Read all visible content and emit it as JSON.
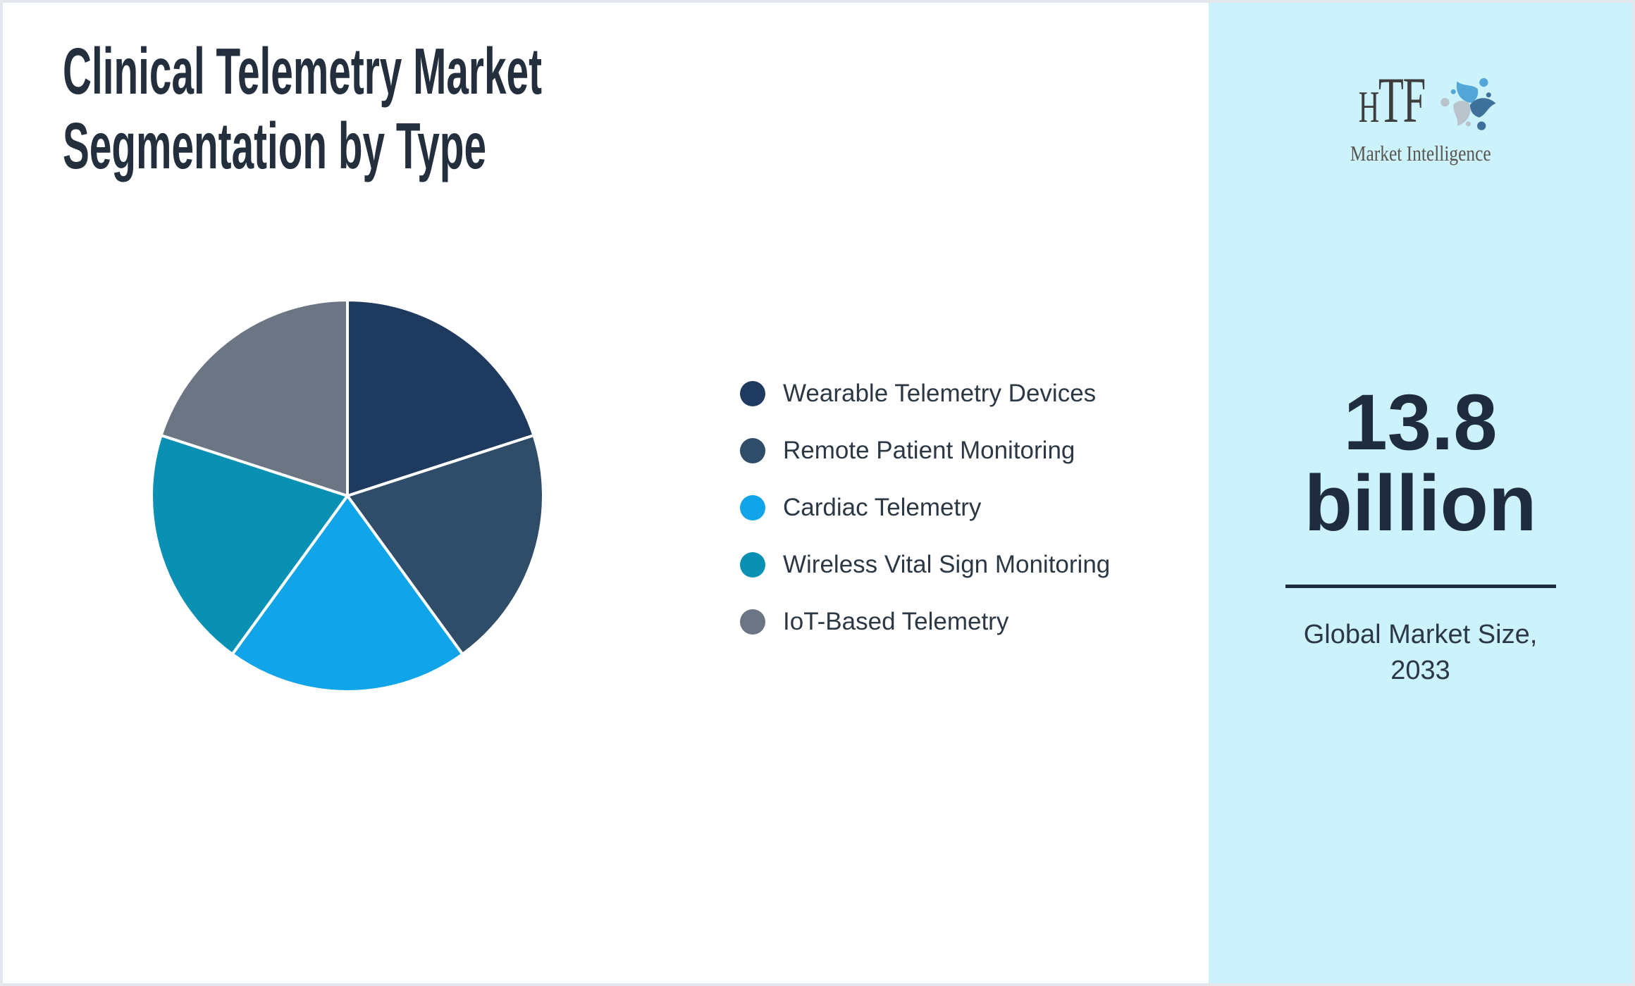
{
  "title": {
    "line1": "Clinical Telemetry Market",
    "line2": "Segmentation by Type"
  },
  "chart_data": {
    "type": "pie",
    "title": "Clinical Telemetry Market Segmentation by Type",
    "labels": [
      "Wearable Telemetry Devices",
      "Remote Patient Monitoring",
      "Cardiac Telemetry",
      "Wireless Vital Sign Monitoring",
      "IoT-Based Telemetry"
    ],
    "values": [
      20,
      20,
      20,
      20,
      20
    ],
    "colors": [
      "#1e3a5f",
      "#2f4c68",
      "#12a4e8",
      "#0a90b2",
      "#6c7583"
    ],
    "slice_border_color": "#ffffff",
    "start_angle": "top",
    "direction": "clockwise",
    "legend_position": "right-of-chart"
  },
  "sidebar": {
    "bg_color": "#ccf2fb",
    "logo": {
      "text_h": "H",
      "text_tf": "TF",
      "subtext": "Market Intelligence",
      "icon_colors": [
        "#53a7d8",
        "#3d719b",
        "#b9c3cc"
      ]
    },
    "stat": {
      "value_line1": "13.8",
      "value_line2": "billion",
      "label_line1": "Global Market Size,",
      "label_line2": "2033"
    }
  }
}
